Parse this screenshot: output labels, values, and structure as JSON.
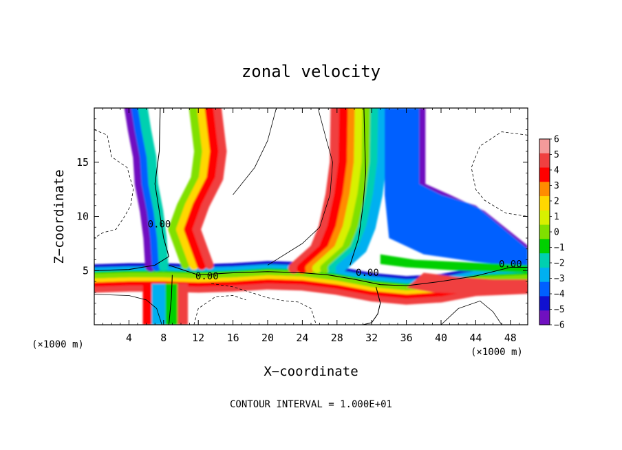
{
  "chart_data": {
    "type": "heatmap",
    "title": "zonal velocity",
    "xlabel": "X−coordinate",
    "ylabel": "Z−coordinate",
    "x_unit_left": "(×1000 m)",
    "x_unit_right": "(×1000 m)",
    "xlim": [
      0,
      50
    ],
    "ylim": [
      0,
      20
    ],
    "xticks": [
      4,
      8,
      12,
      16,
      20,
      24,
      28,
      32,
      36,
      40,
      44,
      48
    ],
    "yticks": [
      5,
      10,
      15
    ],
    "footer": "CONTOUR INTERVAL = 1.000E+01",
    "contour_labels": [
      {
        "text": "0.00",
        "x": 7.5,
        "y": 9.0
      },
      {
        "text": "0.00",
        "x": 13.0,
        "y": 4.2
      },
      {
        "text": "0.00",
        "x": 31.5,
        "y": 4.5
      },
      {
        "text": "0.00",
        "x": 48.0,
        "y": 5.3
      }
    ],
    "colorbar": {
      "levels": [
        6,
        5,
        4,
        3,
        2,
        1,
        0,
        -1,
        -2,
        -3,
        -4,
        -5,
        -6
      ],
      "labels": [
        "6",
        "5",
        "4",
        "3",
        "2",
        "1",
        "0",
        "−1",
        "−2",
        "−3",
        "−4",
        "−5",
        "−6"
      ],
      "colors": [
        "#f49a9a",
        "#f04040",
        "#ff0000",
        "#ff8c00",
        "#ffd700",
        "#d8f000",
        "#80e000",
        "#00d000",
        "#00d0b0",
        "#00b0f0",
        "#0060ff",
        "#1010d0",
        "#7010c0"
      ]
    },
    "grid": false
  }
}
